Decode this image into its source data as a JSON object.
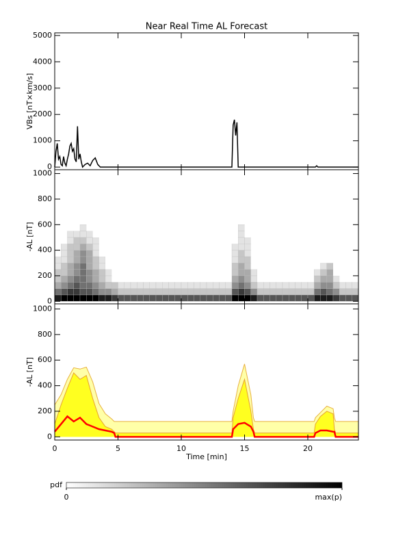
{
  "chart_data": [
    {
      "type": "line",
      "title": "Near Real Time AL Forecast",
      "ylabel": "VBs [nT×km/s]",
      "color": "#000000",
      "x": [
        0,
        0.1,
        0.2,
        0.3,
        0.4,
        0.5,
        0.6,
        0.7,
        0.8,
        0.9,
        1.0,
        1.1,
        1.2,
        1.3,
        1.4,
        1.5,
        1.6,
        1.7,
        1.8,
        1.9,
        2.0,
        2.1,
        2.2,
        2.4,
        2.6,
        2.8,
        3.0,
        3.2,
        3.4,
        3.6,
        14.0,
        14.1,
        14.2,
        14.3,
        14.4,
        14.5,
        20.6,
        20.7,
        20.8,
        24
      ],
      "values": [
        0,
        600,
        900,
        300,
        400,
        100,
        50,
        400,
        150,
        50,
        300,
        500,
        800,
        900,
        600,
        700,
        300,
        200,
        1550,
        300,
        500,
        200,
        0,
        100,
        150,
        50,
        250,
        350,
        100,
        0,
        0,
        1600,
        1800,
        1200,
        1700,
        0,
        0,
        50,
        0,
        0
      ],
      "xlim": [
        0,
        24
      ],
      "ylim": [
        -100,
        5100
      ],
      "xticks": [
        0,
        5,
        10,
        15,
        20
      ],
      "yticks": [
        0,
        1000,
        2000,
        3000,
        4000,
        5000
      ]
    },
    {
      "type": "heatmap",
      "ylabel": "-AL [nT]",
      "x_bins": [
        0,
        0.5,
        1,
        1.5,
        2,
        2.5,
        3,
        3.5,
        4,
        4.5,
        5,
        5.5,
        6,
        6.5,
        7,
        7.5,
        8,
        8.5,
        9,
        9.5,
        10,
        10.5,
        11,
        11.5,
        12,
        12.5,
        13,
        13.5,
        14,
        14.5,
        15,
        15.5,
        16,
        16.5,
        17,
        17.5,
        18,
        18.5,
        19,
        19.5,
        20,
        20.5,
        21,
        21.5,
        22,
        22.5,
        23,
        23.5,
        24
      ],
      "y_bins": [
        0,
        50,
        100,
        150,
        200,
        250,
        300,
        350,
        400,
        450,
        500,
        550,
        600
      ],
      "z": [
        [
          8,
          9,
          9,
          9,
          9,
          9,
          9,
          8,
          8,
          7,
          6,
          6,
          6,
          6,
          6,
          6,
          6,
          6,
          6,
          6,
          6,
          6,
          6,
          6,
          6,
          6,
          6,
          6,
          9,
          9,
          9,
          8,
          6,
          6,
          6,
          6,
          6,
          6,
          6,
          6,
          6,
          8,
          8,
          8,
          7,
          6,
          6,
          6
        ],
        [
          5,
          6,
          7,
          7,
          6,
          6,
          5,
          4,
          4,
          3,
          2,
          2,
          2,
          2,
          2,
          2,
          2,
          2,
          2,
          2,
          2,
          2,
          2,
          2,
          2,
          2,
          2,
          2,
          6,
          7,
          6,
          4,
          2,
          2,
          2,
          2,
          2,
          2,
          2,
          2,
          2,
          5,
          6,
          5,
          4,
          2,
          2,
          2
        ],
        [
          3,
          4,
          5,
          6,
          5,
          5,
          4,
          3,
          2,
          2,
          1,
          1,
          1,
          1,
          1,
          1,
          1,
          1,
          1,
          1,
          1,
          1,
          1,
          1,
          1,
          1,
          1,
          1,
          4,
          5,
          4,
          2,
          1,
          1,
          1,
          1,
          1,
          1,
          1,
          1,
          1,
          3,
          4,
          4,
          2,
          1,
          1,
          1
        ],
        [
          2,
          3,
          4,
          5,
          5,
          4,
          3,
          2,
          1,
          0,
          0,
          0,
          0,
          0,
          0,
          0,
          0,
          0,
          0,
          0,
          0,
          0,
          0,
          0,
          0,
          0,
          0,
          0,
          3,
          4,
          3,
          1,
          0,
          0,
          0,
          0,
          0,
          0,
          0,
          0,
          0,
          2,
          3,
          3,
          1,
          0,
          0,
          0
        ],
        [
          2,
          2,
          3,
          4,
          5,
          4,
          3,
          2,
          1,
          0,
          0,
          0,
          0,
          0,
          0,
          0,
          0,
          0,
          0,
          0,
          0,
          0,
          0,
          0,
          0,
          0,
          0,
          0,
          2,
          3,
          3,
          1,
          0,
          0,
          0,
          0,
          0,
          0,
          0,
          0,
          0,
          1,
          2,
          3,
          0,
          0,
          0,
          0
        ],
        [
          1,
          2,
          3,
          4,
          5,
          3,
          2,
          1,
          0,
          0,
          0,
          0,
          0,
          0,
          0,
          0,
          0,
          0,
          0,
          0,
          0,
          0,
          0,
          0,
          0,
          0,
          0,
          0,
          2,
          3,
          2,
          0,
          0,
          0,
          0,
          0,
          0,
          0,
          0,
          0,
          0,
          0,
          1,
          2,
          0,
          0,
          0,
          0
        ],
        [
          1,
          1,
          2,
          3,
          4,
          3,
          2,
          1,
          0,
          0,
          0,
          0,
          0,
          0,
          0,
          0,
          0,
          0,
          0,
          0,
          0,
          0,
          0,
          0,
          0,
          0,
          0,
          0,
          1,
          2,
          2,
          0,
          0,
          0,
          0,
          0,
          0,
          0,
          0,
          0,
          0,
          0,
          0,
          0,
          0,
          0,
          0,
          0
        ],
        [
          0,
          1,
          2,
          3,
          4,
          3,
          1,
          0,
          0,
          0,
          0,
          0,
          0,
          0,
          0,
          0,
          0,
          0,
          0,
          0,
          0,
          0,
          0,
          0,
          0,
          0,
          0,
          0,
          1,
          2,
          1,
          0,
          0,
          0,
          0,
          0,
          0,
          0,
          0,
          0,
          0,
          0,
          0,
          0,
          0,
          0,
          0,
          0
        ],
        [
          0,
          1,
          2,
          2,
          3,
          2,
          1,
          0,
          0,
          0,
          0,
          0,
          0,
          0,
          0,
          0,
          0,
          0,
          0,
          0,
          0,
          0,
          0,
          0,
          0,
          0,
          0,
          0,
          1,
          1,
          1,
          0,
          0,
          0,
          0,
          0,
          0,
          0,
          0,
          0,
          0,
          0,
          0,
          0,
          0,
          0,
          0,
          0
        ],
        [
          0,
          0,
          1,
          2,
          2,
          1,
          1,
          0,
          0,
          0,
          0,
          0,
          0,
          0,
          0,
          0,
          0,
          0,
          0,
          0,
          0,
          0,
          0,
          0,
          0,
          0,
          0,
          0,
          0,
          1,
          1,
          0,
          0,
          0,
          0,
          0,
          0,
          0,
          0,
          0,
          0,
          0,
          0,
          0,
          0,
          0,
          0,
          0
        ],
        [
          0,
          0,
          1,
          1,
          1,
          1,
          0,
          0,
          0,
          0,
          0,
          0,
          0,
          0,
          0,
          0,
          0,
          0,
          0,
          0,
          0,
          0,
          0,
          0,
          0,
          0,
          0,
          0,
          0,
          1,
          0,
          0,
          0,
          0,
          0,
          0,
          0,
          0,
          0,
          0,
          0,
          0,
          0,
          0,
          0,
          0,
          0,
          0
        ],
        [
          0,
          0,
          0,
          0,
          1,
          0,
          0,
          0,
          0,
          0,
          0,
          0,
          0,
          0,
          0,
          0,
          0,
          0,
          0,
          0,
          0,
          0,
          0,
          0,
          0,
          0,
          0,
          0,
          0,
          1,
          0,
          0,
          0,
          0,
          0,
          0,
          0,
          0,
          0,
          0,
          0,
          0,
          0,
          0,
          0,
          0,
          0,
          0
        ]
      ],
      "zlim": [
        0,
        9
      ],
      "colorbar": {
        "label": "pdf",
        "colors": [
          "#ffffff",
          "#000000"
        ],
        "ticks": [
          0,
          {
            "value": 9,
            "label": "max(p)"
          }
        ]
      },
      "xlim": [
        0,
        24
      ],
      "ylim": [
        -20,
        1030
      ],
      "xticks": [
        0,
        5,
        10,
        15,
        20
      ],
      "yticks": [
        0,
        200,
        400,
        600,
        800,
        1000
      ]
    },
    {
      "type": "area",
      "ylabel": "-AL [nT]",
      "xlabel": "Time [min]",
      "x": [
        0,
        0.5,
        1,
        1.5,
        2,
        2.5,
        3,
        3.5,
        4,
        4.5,
        4.7,
        4.8,
        14,
        14.1,
        14.5,
        15,
        15.5,
        15.7,
        15.8,
        20.5,
        20.6,
        21,
        21.5,
        22,
        22.1,
        22.2,
        24
      ],
      "series": [
        {
          "fill": true,
          "fill_color": "#ffffa8",
          "color": "#e8b040",
          "values": [
            250,
            330,
            450,
            540,
            530,
            545,
            430,
            260,
            180,
            140,
            120,
            120,
            120,
            200,
            400,
            570,
            330,
            150,
            120,
            120,
            150,
            190,
            240,
            220,
            150,
            120,
            120
          ]
        },
        {
          "fill": true,
          "fill_color": "#ffff20",
          "color": "#e8a030",
          "values": [
            100,
            250,
            380,
            500,
            450,
            480,
            300,
            150,
            80,
            60,
            40,
            30,
            30,
            150,
            300,
            450,
            200,
            60,
            30,
            30,
            100,
            160,
            200,
            180,
            60,
            30,
            30
          ]
        },
        {
          "fill": false,
          "color": "#ff0000",
          "values": [
            40,
            100,
            160,
            120,
            150,
            100,
            80,
            60,
            50,
            40,
            30,
            0,
            0,
            60,
            100,
            110,
            80,
            40,
            0,
            0,
            30,
            50,
            50,
            40,
            40,
            0,
            0
          ]
        }
      ],
      "xlim": [
        0,
        24
      ],
      "ylim": [
        -25,
        1040
      ],
      "xticks": [
        0,
        5,
        10,
        15,
        20
      ],
      "yticks": [
        0,
        200,
        400,
        600,
        800,
        1000
      ]
    }
  ]
}
